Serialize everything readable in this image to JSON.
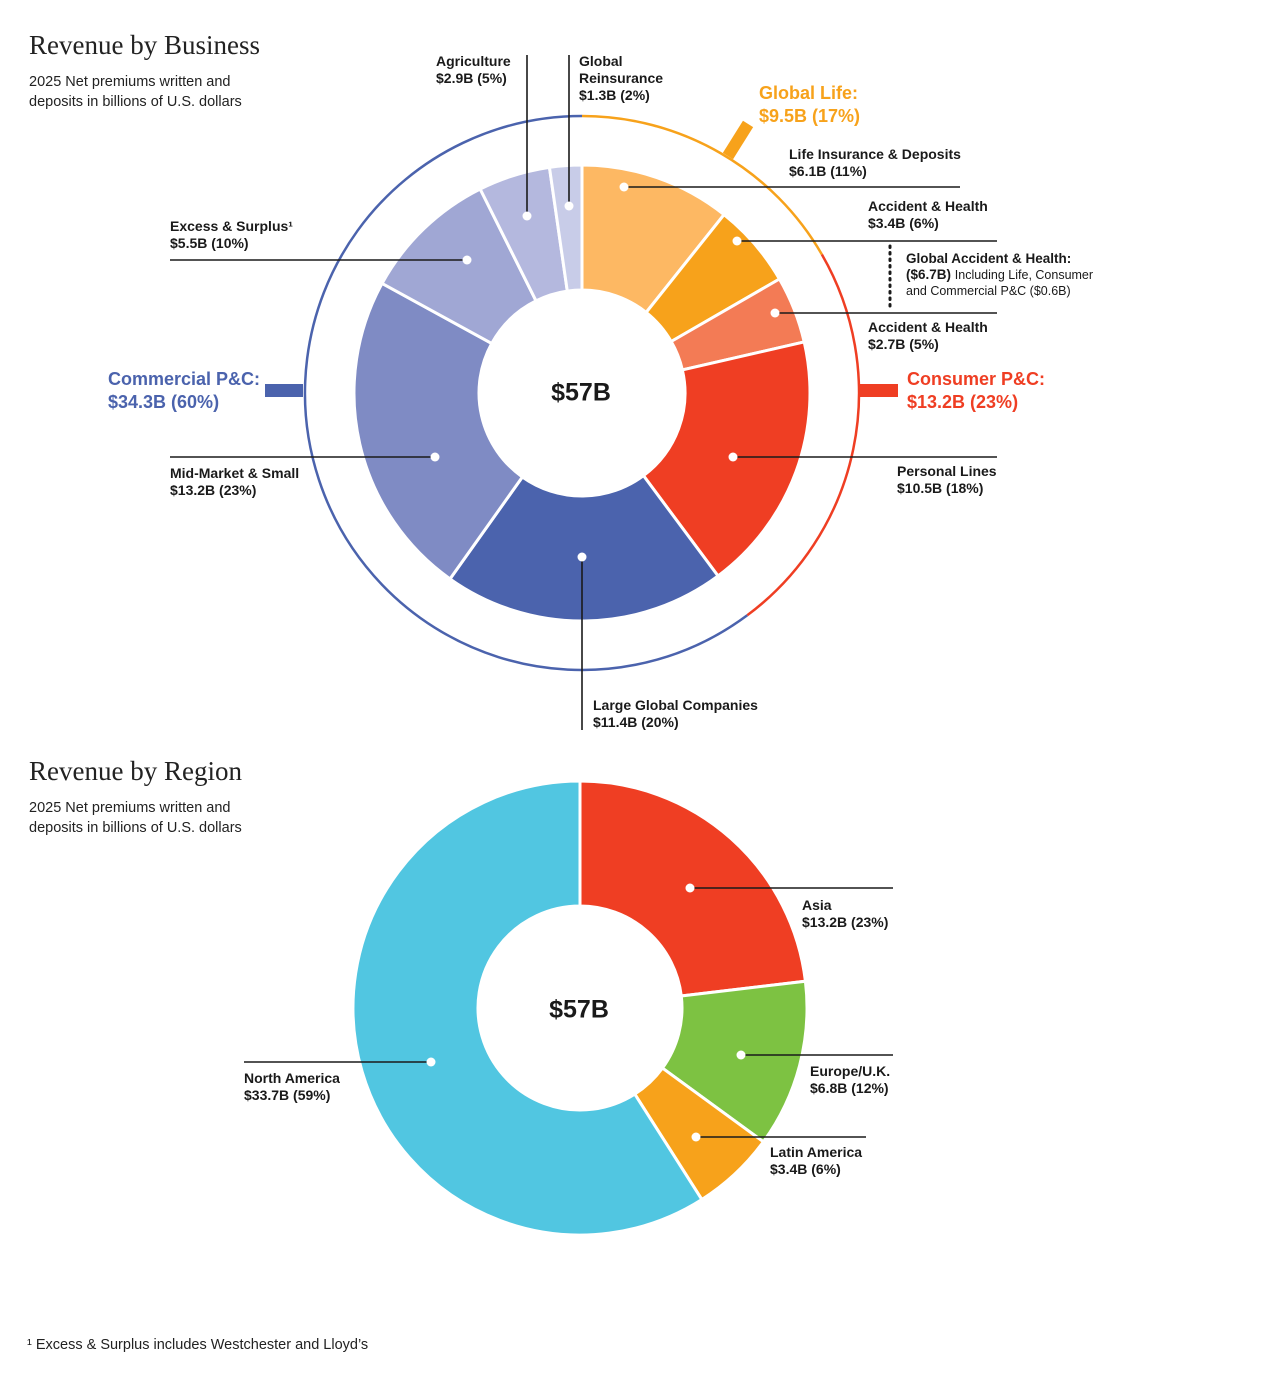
{
  "chart_data": [
    {
      "type": "pie",
      "title": "Revenue by Business",
      "subtitle": "2025 Net premiums written and deposits in billions of U.S. dollars",
      "center_label": "$57B",
      "slices": [
        {
          "name": "Life Insurance & Deposits",
          "value": 6.1,
          "label": "$6.1B (11%)",
          "color": "#FDB863"
        },
        {
          "name": "Accident & Health",
          "value": 3.4,
          "label": "$3.4B (6%)",
          "color": "#F7A21B"
        },
        {
          "name": "Accident & Health",
          "value": 2.7,
          "label": "$2.7B (5%)",
          "color": "#F37B55"
        },
        {
          "name": "Personal Lines",
          "value": 10.5,
          "label": "$10.5B (18%)",
          "color": "#EF3E23"
        },
        {
          "name": "Large Global Companies",
          "value": 11.4,
          "label": "$11.4B (20%)",
          "color": "#4B63AD"
        },
        {
          "name": "Mid-Market & Small",
          "value": 13.2,
          "label": "$13.2B (23%)",
          "color": "#7F8BC4"
        },
        {
          "name": "Excess & Surplus¹",
          "value": 5.5,
          "label": "$5.5B (10%)",
          "color": "#A0A7D4"
        },
        {
          "name": "Agriculture",
          "value": 2.9,
          "label": "$2.9B (5%)",
          "color": "#B4B8DE"
        },
        {
          "name": "Global Reinsurance",
          "value": 1.3,
          "label": "$1.3B (2%)",
          "color": "#C8CCE8"
        }
      ],
      "groups": [
        {
          "name": "Global Life:",
          "value": 9.5,
          "label": "$9.5B (17%)",
          "color": "#F7A21B"
        },
        {
          "name": "Consumer P&C:",
          "value": 13.2,
          "label": "$13.2B (23%)",
          "color": "#EF3E23"
        },
        {
          "name": "Commercial P&C:",
          "value": 34.3,
          "label": "$34.3B (60%)",
          "color": "#4B63AD"
        }
      ],
      "annotation": {
        "title": "Global Accident & Health:",
        "value": "($6.7B)",
        "note1": "Including Life, Consumer",
        "note2": "and Commercial P&C ($0.6B)"
      }
    },
    {
      "type": "pie",
      "title": "Revenue by Region",
      "subtitle": "2025 Net premiums written and deposits in billions of U.S. dollars",
      "center_label": "$57B",
      "slices": [
        {
          "name": "Asia",
          "value": 13.2,
          "label": "$13.2B (23%)",
          "color": "#EF3E23"
        },
        {
          "name": "Europe/U.K.",
          "value": 6.8,
          "label": "$6.8B (12%)",
          "color": "#7DC242"
        },
        {
          "name": "Latin America",
          "value": 3.4,
          "label": "$3.4B (6%)",
          "color": "#F7A21B"
        },
        {
          "name": "North America",
          "value": 33.7,
          "label": "$33.7B (59%)",
          "color": "#51C6E1"
        }
      ]
    }
  ],
  "subtitle_line1": "2025 Net premiums written and",
  "subtitle_line2": "deposits in billions of U.S. dollars",
  "footnote": "¹ Excess & Surplus includes Westchester and Lloyd’s"
}
